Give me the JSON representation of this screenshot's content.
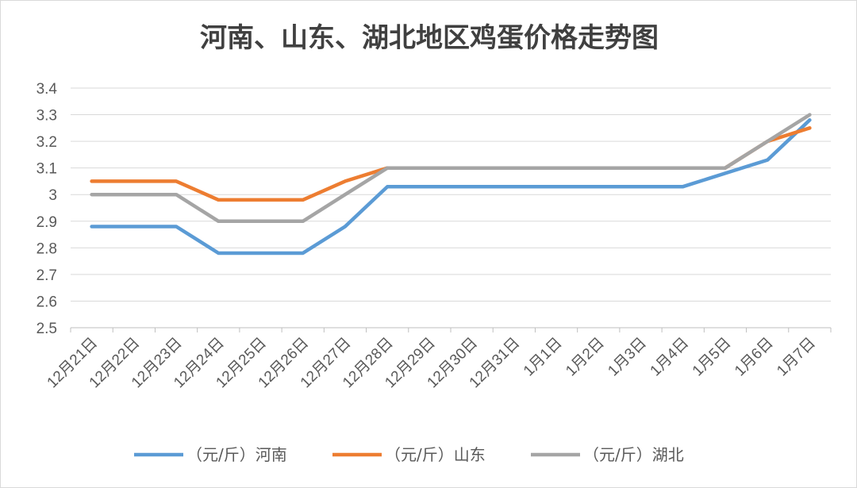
{
  "chart_data": {
    "type": "line",
    "title": "河南、山东、湖北地区鸡蛋价格走势图",
    "categories": [
      "12月21日",
      "12月22日",
      "12月23日",
      "12月24日",
      "12月25日",
      "12月26日",
      "12月27日",
      "12月28日",
      "12月29日",
      "12月30日",
      "12月31日",
      "1月1日",
      "1月2日",
      "1月3日",
      "1月4日",
      "1月5日",
      "1月6日",
      "1月7日"
    ],
    "ylim": [
      2.5,
      3.4
    ],
    "yticks": [
      "2.5",
      "2.6",
      "2.7",
      "2.8",
      "2.9",
      "3",
      "3.1",
      "3.2",
      "3.3",
      "3.4"
    ],
    "grid": true,
    "legend_position": "bottom",
    "series": [
      {
        "name": "（元/斤）河南",
        "color": "#5b9bd5",
        "values": [
          2.88,
          2.88,
          2.88,
          2.78,
          2.78,
          2.78,
          2.88,
          3.03,
          3.03,
          3.03,
          3.03,
          3.03,
          3.03,
          3.03,
          3.03,
          3.08,
          3.13,
          3.28
        ]
      },
      {
        "name": "（元/斤）山东",
        "color": "#ed7d31",
        "values": [
          3.05,
          3.05,
          3.05,
          2.98,
          2.98,
          2.98,
          3.05,
          3.1,
          3.1,
          3.1,
          3.1,
          3.1,
          3.1,
          3.1,
          3.1,
          3.1,
          3.2,
          3.25
        ]
      },
      {
        "name": "（元/斤）湖北",
        "color": "#a5a5a5",
        "values": [
          3.0,
          3.0,
          3.0,
          2.9,
          2.9,
          2.9,
          3.0,
          3.1,
          3.1,
          3.1,
          3.1,
          3.1,
          3.1,
          3.1,
          3.1,
          3.1,
          3.2,
          3.3
        ]
      }
    ]
  }
}
